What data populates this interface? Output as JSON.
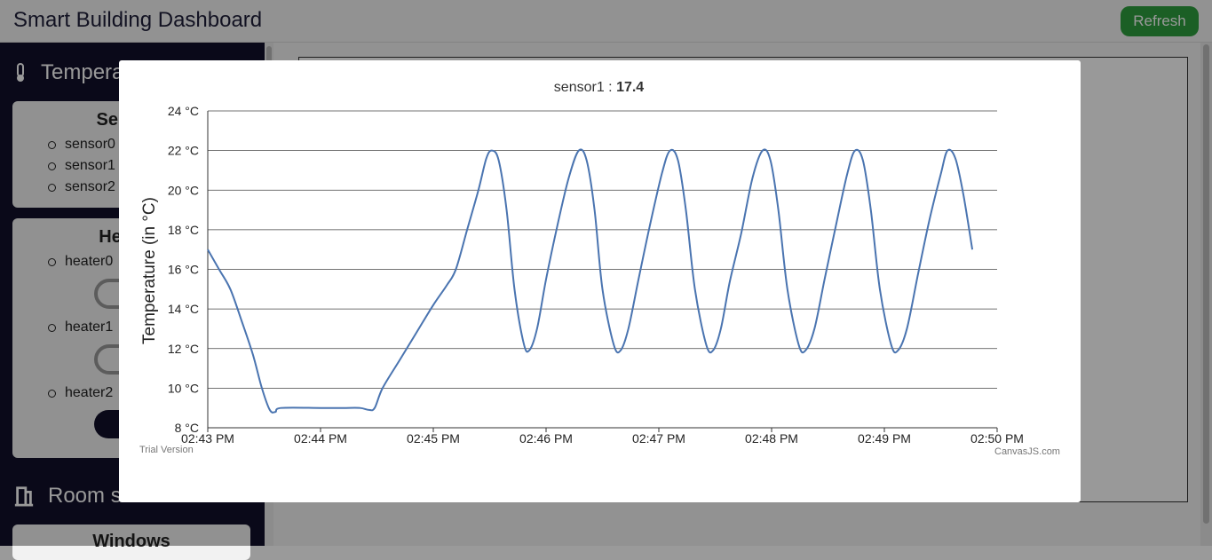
{
  "header": {
    "title": "Smart Building Dashboard",
    "refresh_label": "Refresh"
  },
  "sidebar": {
    "temperature_heading": "Temperature",
    "sensors_card_title": "Sensors",
    "sensors": [
      "sensor0",
      "sensor1",
      "sensor2"
    ],
    "heaters_card_title": "Heaters",
    "heaters": [
      "heater0",
      "heater1",
      "heater2"
    ],
    "room_heading": "Room sensors",
    "windows_card_title": "Windows"
  },
  "modal": {
    "title_name": "sensor1 : ",
    "title_value": "17.4",
    "trial": "Trial Version",
    "credit": "CanvasJS.com"
  },
  "chart_data": {
    "type": "line",
    "series": [
      {
        "name": "sensor1",
        "color": "#4a74b0"
      }
    ],
    "ylabel": "Temperature (in °C)",
    "ylim": [
      8,
      24
    ],
    "yticks": [
      "8 °C",
      "10 °C",
      "12 °C",
      "14 °C",
      "16 °C",
      "18 °C",
      "20 °C",
      "22 °C",
      "24 °C"
    ],
    "xlim_minutes": [
      0,
      7
    ],
    "xticks": [
      "02:43 PM",
      "02:44 PM",
      "02:45 PM",
      "02:46 PM",
      "02:47 PM",
      "02:48 PM",
      "02:49 PM",
      "02:50 PM"
    ],
    "grid": true,
    "points": [
      [
        0.0,
        17
      ],
      [
        0.1,
        16
      ],
      [
        0.2,
        15
      ],
      [
        0.3,
        13.4
      ],
      [
        0.4,
        11.7
      ],
      [
        0.48,
        10
      ],
      [
        0.55,
        8.9
      ],
      [
        0.6,
        8.8
      ],
      [
        0.65,
        9
      ],
      [
        1.0,
        9
      ],
      [
        1.2,
        9
      ],
      [
        1.35,
        9
      ],
      [
        1.43,
        8.9
      ],
      [
        1.48,
        9
      ],
      [
        1.55,
        10
      ],
      [
        1.7,
        11.4
      ],
      [
        1.85,
        12.8
      ],
      [
        2.0,
        14.2
      ],
      [
        2.12,
        15.2
      ],
      [
        2.2,
        16
      ],
      [
        2.3,
        18
      ],
      [
        2.4,
        20
      ],
      [
        2.47,
        21.6
      ],
      [
        2.52,
        22
      ],
      [
        2.58,
        21.5
      ],
      [
        2.65,
        19
      ],
      [
        2.72,
        15
      ],
      [
        2.8,
        12.3
      ],
      [
        2.85,
        11.9
      ],
      [
        2.92,
        13
      ],
      [
        3.0,
        15.5
      ],
      [
        3.1,
        18.2
      ],
      [
        3.2,
        20.6
      ],
      [
        3.29,
        22
      ],
      [
        3.36,
        21.5
      ],
      [
        3.43,
        19
      ],
      [
        3.5,
        15
      ],
      [
        3.6,
        12.2
      ],
      [
        3.66,
        11.9
      ],
      [
        3.73,
        13
      ],
      [
        3.82,
        15.5
      ],
      [
        3.92,
        18.2
      ],
      [
        4.03,
        20.9
      ],
      [
        4.1,
        22
      ],
      [
        4.17,
        21.5
      ],
      [
        4.24,
        19
      ],
      [
        4.32,
        15
      ],
      [
        4.42,
        12.2
      ],
      [
        4.48,
        11.9
      ],
      [
        4.55,
        13
      ],
      [
        4.63,
        15.4
      ],
      [
        4.73,
        17.8
      ],
      [
        4.83,
        20.6
      ],
      [
        4.92,
        22
      ],
      [
        4.99,
        21.5
      ],
      [
        5.06,
        19
      ],
      [
        5.14,
        15
      ],
      [
        5.24,
        12.2
      ],
      [
        5.3,
        11.9
      ],
      [
        5.38,
        13
      ],
      [
        5.47,
        15.5
      ],
      [
        5.57,
        18.2
      ],
      [
        5.67,
        20.8
      ],
      [
        5.74,
        22
      ],
      [
        5.81,
        21.5
      ],
      [
        5.88,
        19
      ],
      [
        5.96,
        15
      ],
      [
        6.06,
        12.2
      ],
      [
        6.12,
        11.9
      ],
      [
        6.2,
        13
      ],
      [
        6.3,
        15.8
      ],
      [
        6.4,
        18.5
      ],
      [
        6.5,
        20.8
      ],
      [
        6.56,
        22
      ],
      [
        6.63,
        21.6
      ],
      [
        6.7,
        19.8
      ],
      [
        6.78,
        17
      ]
    ]
  }
}
